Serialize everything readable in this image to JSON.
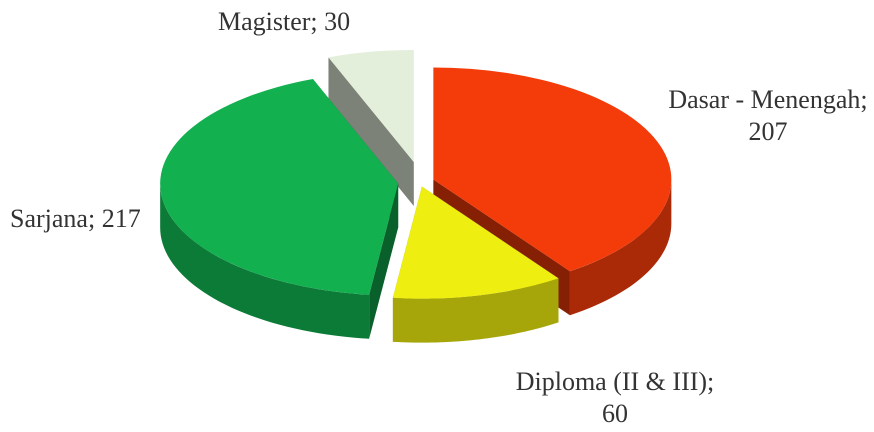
{
  "chart_data": {
    "type": "pie",
    "categories": [
      "Dasar - Menengah",
      "Diploma (II & III)",
      "Sarjana",
      "Magister"
    ],
    "values": [
      207,
      60,
      217,
      30
    ],
    "colors": [
      "#f43b0a",
      "#eeee10",
      "#12b04f",
      "#e3eedb"
    ]
  }
}
